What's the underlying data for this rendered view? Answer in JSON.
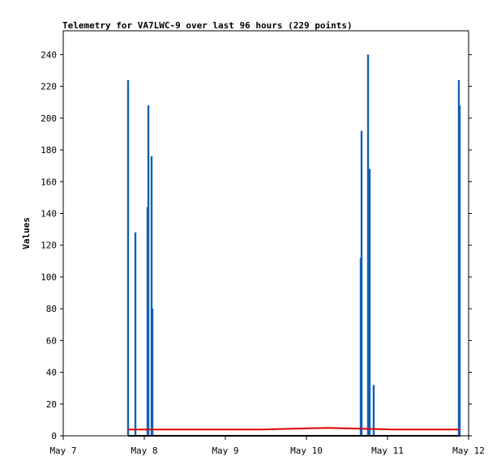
{
  "chart_data": {
    "type": "bar",
    "title": "Telemetry for VA7LWC-9 over last 96 hours (229 points)",
    "xlabel": "",
    "ylabel": "Values",
    "xlim": [
      "May 7",
      "May 12"
    ],
    "ylim": [
      0,
      255
    ],
    "y_ticks": [
      0,
      20,
      40,
      60,
      80,
      100,
      120,
      140,
      160,
      180,
      200,
      220,
      240
    ],
    "x_ticks": [
      "May 7",
      "May 8",
      "May 9",
      "May 10",
      "May 11",
      "May 12"
    ],
    "grid": false,
    "colors": {
      "bars": "#1060b8",
      "line_red": "#dd0000",
      "line_black": "#000000",
      "background": "#ffffff"
    },
    "series": [
      {
        "values_x_days": [
          0.8,
          0.89,
          1.04,
          1.05,
          1.09,
          1.1,
          3.67,
          3.68,
          3.76,
          3.78,
          3.83,
          4.88,
          4.89
        ],
        "values_y": [
          224,
          128,
          144,
          208,
          176,
          80,
          112,
          192,
          240,
          168,
          32,
          224,
          208
        ]
      },
      {
        "x_range_days": [
          0.8,
          4.9
        ],
        "values_y": [
          4,
          4,
          4,
          5,
          4,
          4
        ]
      },
      {
        "x_range_days": [
          0.8,
          4.9
        ],
        "values_y": [
          0,
          0
        ]
      }
    ]
  }
}
